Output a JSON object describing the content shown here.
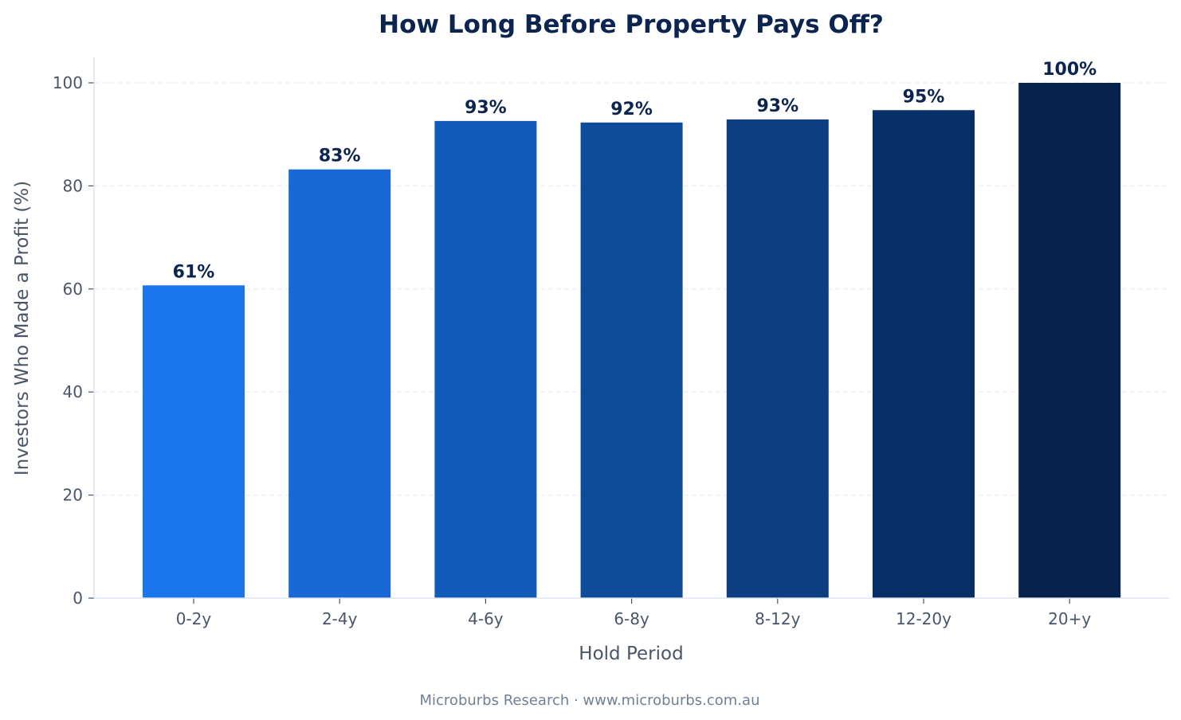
{
  "chart_data": {
    "type": "bar",
    "title": "How Long Before Property Pays Off?",
    "xlabel": "Hold Period",
    "ylabel": "Investors Who Made a Profit (%)",
    "categories": [
      "0-2y",
      "2-4y",
      "4-6y",
      "6-8y",
      "8-12y",
      "12-20y",
      "20+y"
    ],
    "values": [
      60.7,
      83.2,
      92.6,
      92.3,
      92.9,
      94.7,
      100
    ],
    "data_labels": [
      "61%",
      "83%",
      "93%",
      "92%",
      "93%",
      "95%",
      "100%"
    ],
    "colors": [
      "#1976ec",
      "#1868d5",
      "#125bb8",
      "#0e4c9a",
      "#0d3e82",
      "#082f68",
      "#06234d"
    ],
    "ylim": [
      0,
      105
    ],
    "yticks": [
      0,
      20,
      40,
      60,
      80,
      100
    ],
    "grid": "horizontal dashed",
    "legend": "none"
  },
  "footer": "Microburbs Research · www.microburbs.com.au"
}
